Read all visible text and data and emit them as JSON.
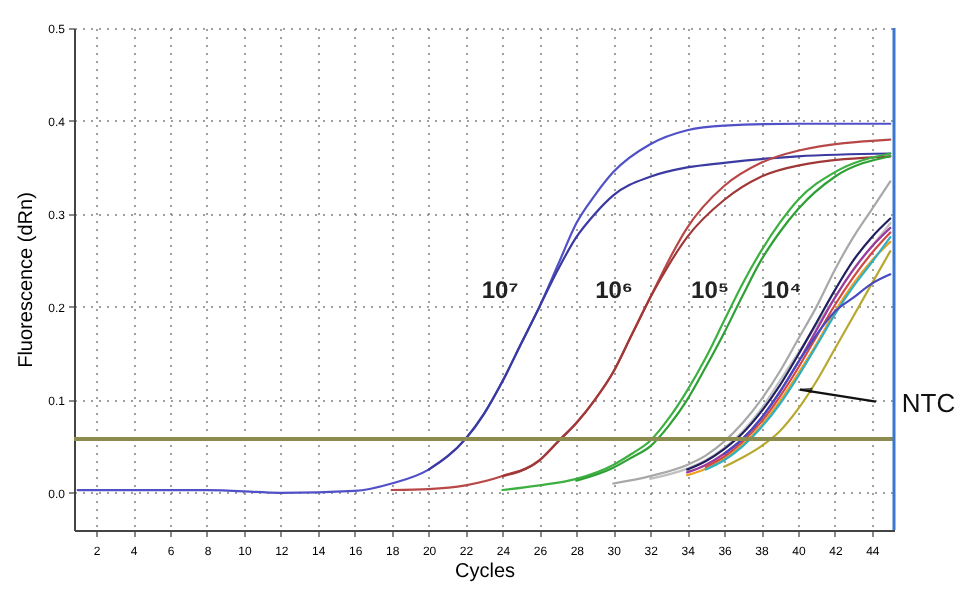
{
  "chart_data": {
    "type": "line",
    "xlabel": "Cycles",
    "ylabel": "Fluorescence (dRn)",
    "xlim": [
      0.8,
      45.2
    ],
    "ylim": [
      -0.04,
      0.5
    ],
    "xticks": [
      2,
      4,
      6,
      8,
      10,
      12,
      14,
      16,
      18,
      20,
      22,
      24,
      26,
      28,
      30,
      32,
      34,
      36,
      38,
      40,
      42,
      44
    ],
    "yticks": [
      {
        "value": 0,
        "label": "0.0"
      },
      0.1,
      0.2,
      0.3,
      0.4,
      0.5
    ],
    "grid": true,
    "line_style": "solid",
    "ref_lines": [
      {
        "axis": "y",
        "value": 0.058,
        "color": "#8c8c50"
      },
      {
        "axis": "x",
        "value": 45.2,
        "color": "#3a78d0"
      }
    ],
    "annotations": [
      "10⁷",
      "10⁶",
      "10⁵",
      "10⁴",
      {
        "text": "NTC",
        "x": 40.1,
        "y": 0.111
      }
    ],
    "series": [
      {
        "color": "#5050c8",
        "x": [
          1,
          4,
          8,
          12,
          16,
          18,
          20,
          22,
          23,
          24,
          25,
          26,
          27,
          28,
          29,
          30,
          32,
          34,
          36,
          40,
          45
        ],
        "values": [
          0.003,
          0.003,
          0.003,
          0,
          0.002,
          0.01,
          0.025,
          0.058,
          0.085,
          0.12,
          0.16,
          0.2,
          0.245,
          0.29,
          0.32,
          0.345,
          0.375,
          0.39,
          0.395,
          0.397,
          0.397
        ]
      },
      {
        "color": "#3a3aa0",
        "x": [
          20,
          22,
          23,
          24,
          25,
          26,
          27,
          28,
          29,
          30,
          32,
          34,
          36,
          40,
          45
        ],
        "values": [
          0.025,
          0.058,
          0.085,
          0.12,
          0.16,
          0.2,
          0.24,
          0.275,
          0.3,
          0.32,
          0.34,
          0.35,
          0.355,
          0.362,
          0.365
        ]
      },
      {
        "color": "#b84848",
        "x": [
          18,
          20,
          22,
          24,
          26,
          27,
          28,
          29,
          30,
          31,
          32,
          33,
          34,
          36,
          38,
          40,
          45
        ],
        "values": [
          0.003,
          0.004,
          0.008,
          0.018,
          0.035,
          0.055,
          0.075,
          0.1,
          0.13,
          0.17,
          0.21,
          0.25,
          0.285,
          0.33,
          0.355,
          0.368,
          0.38
        ]
      },
      {
        "color": "#a03838",
        "x": [
          24,
          26,
          27,
          28,
          29,
          30,
          31,
          32,
          33,
          34,
          36,
          38,
          40,
          45
        ],
        "values": [
          0.018,
          0.035,
          0.055,
          0.075,
          0.1,
          0.13,
          0.17,
          0.21,
          0.245,
          0.275,
          0.315,
          0.34,
          0.352,
          0.362
        ]
      },
      {
        "color": "#3cb040",
        "x": [
          24,
          26,
          28,
          30,
          31,
          32,
          33,
          34,
          35,
          36,
          37,
          38,
          39,
          40,
          42,
          45
        ],
        "values": [
          0.003,
          0.008,
          0.015,
          0.03,
          0.042,
          0.056,
          0.08,
          0.11,
          0.145,
          0.185,
          0.225,
          0.26,
          0.29,
          0.315,
          0.345,
          0.365
        ]
      },
      {
        "color": "#2ea034",
        "x": [
          28,
          30,
          31,
          32,
          33,
          34,
          35,
          36,
          37,
          38,
          39,
          40,
          42,
          45
        ],
        "values": [
          0.013,
          0.027,
          0.038,
          0.05,
          0.072,
          0.1,
          0.135,
          0.172,
          0.212,
          0.25,
          0.28,
          0.305,
          0.34,
          0.362
        ]
      },
      {
        "color": "#a8a8a8",
        "x": [
          30,
          32,
          34,
          35,
          36,
          37,
          38,
          39,
          40,
          41,
          42,
          43,
          44,
          45
        ],
        "values": [
          0.01,
          0.018,
          0.03,
          0.04,
          0.055,
          0.075,
          0.1,
          0.13,
          0.165,
          0.2,
          0.24,
          0.275,
          0.305,
          0.335
        ]
      },
      {
        "color": "#c0c0c0",
        "x": [
          32,
          34,
          35,
          36,
          37,
          38,
          39,
          40,
          41,
          42,
          43,
          44,
          45
        ],
        "values": [
          0.015,
          0.026,
          0.035,
          0.048,
          0.066,
          0.09,
          0.12,
          0.15,
          0.18,
          0.21,
          0.24,
          0.265,
          0.29
        ]
      },
      {
        "color": "#9a3aa0",
        "x": [
          34,
          35,
          36,
          37,
          38,
          39,
          40,
          41,
          42,
          43,
          44,
          45
        ],
        "values": [
          0.022,
          0.03,
          0.042,
          0.058,
          0.08,
          0.108,
          0.14,
          0.175,
          0.21,
          0.24,
          0.265,
          0.285
        ]
      },
      {
        "color": "#f0a020",
        "x": [
          34,
          35,
          36,
          37,
          38,
          39,
          40,
          41,
          42,
          43,
          44,
          45
        ],
        "values": [
          0.019,
          0.026,
          0.037,
          0.052,
          0.072,
          0.098,
          0.128,
          0.16,
          0.195,
          0.225,
          0.25,
          0.27
        ]
      },
      {
        "color": "#30b0c0",
        "x": [
          35,
          36,
          37,
          38,
          39,
          40,
          41,
          42,
          43,
          44,
          45
        ],
        "values": [
          0.025,
          0.035,
          0.05,
          0.07,
          0.095,
          0.125,
          0.158,
          0.192,
          0.222,
          0.248,
          0.275
        ]
      },
      {
        "color": "#202060",
        "x": [
          34,
          35,
          36,
          37,
          38,
          39,
          40,
          41,
          42,
          43,
          44,
          45
        ],
        "values": [
          0.025,
          0.034,
          0.047,
          0.064,
          0.087,
          0.115,
          0.148,
          0.183,
          0.218,
          0.25,
          0.275,
          0.295
        ]
      },
      {
        "color": "#d04848",
        "x": [
          35,
          36,
          37,
          38,
          39,
          40,
          41,
          42,
          43,
          44,
          45
        ],
        "values": [
          0.028,
          0.039,
          0.055,
          0.076,
          0.103,
          0.134,
          0.168,
          0.202,
          0.232,
          0.258,
          0.28
        ]
      },
      {
        "color": "#b8a830",
        "x": [
          36,
          37,
          38,
          39,
          40,
          41,
          42,
          43,
          44,
          45
        ],
        "values": [
          0.028,
          0.038,
          0.05,
          0.066,
          0.09,
          0.12,
          0.155,
          0.19,
          0.225,
          0.26
        ]
      },
      {
        "color": "#4848c0",
        "x": [
          36,
          37,
          38,
          39,
          40,
          41,
          42,
          43,
          44,
          45
        ],
        "values": [
          0.042,
          0.058,
          0.08,
          0.108,
          0.14,
          0.17,
          0.195,
          0.21,
          0.225,
          0.235
        ]
      }
    ]
  }
}
